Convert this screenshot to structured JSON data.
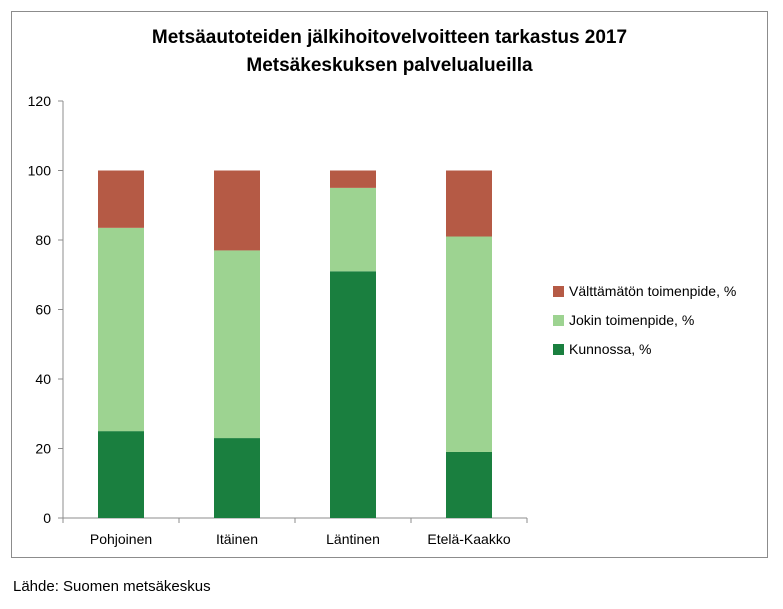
{
  "chart_data": {
    "type": "bar",
    "stacked": true,
    "title": "Metsäautoteiden jälkihoitovelvoitteen tarkastus 2017",
    "subtitle": "Metsäkeskuksen palvelualueilla",
    "categories": [
      "Pohjoinen",
      "Itäinen",
      "Läntinen",
      "Etelä-Kaakko"
    ],
    "series": [
      {
        "name": "Kunnossa, %",
        "values": [
          25,
          23,
          71,
          19
        ],
        "color": "#1a7f3f"
      },
      {
        "name": "Jokin toimenpide, %",
        "values": [
          58.5,
          54,
          24,
          62
        ],
        "color": "#9dd391"
      },
      {
        "name": "Välttämätön toimenpide, %",
        "values": [
          16.5,
          23,
          5,
          19
        ],
        "color": "#b55a45"
      }
    ],
    "ylim": [
      0,
      120
    ],
    "yticks": [
      0,
      20,
      40,
      60,
      80,
      100,
      120
    ],
    "grid": false,
    "legend": "right"
  },
  "source": "Lähde: Suomen metsäkeskus"
}
